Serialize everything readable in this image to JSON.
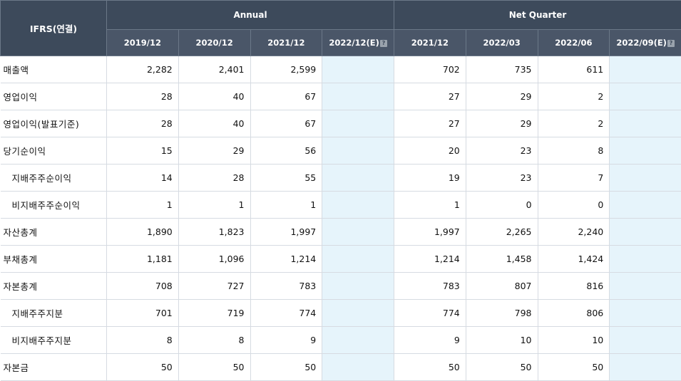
{
  "header": {
    "corner": "IFRS(연결)",
    "annual_group": "Annual",
    "quarter_group": "Net Quarter",
    "annual_cols": [
      "2019/12",
      "2020/12",
      "2021/12",
      "2022/12(E)"
    ],
    "quarter_cols": [
      "2021/12",
      "2022/03",
      "2022/06",
      "2022/09(E)"
    ],
    "help_glyph": "?"
  },
  "rows": [
    {
      "label": "매출액",
      "annual": [
        "2,282",
        "2,401",
        "2,599",
        ""
      ],
      "quarter": [
        "702",
        "735",
        "611",
        ""
      ]
    },
    {
      "label": "영업이익",
      "annual": [
        "28",
        "40",
        "67",
        ""
      ],
      "quarter": [
        "27",
        "29",
        "2",
        ""
      ]
    },
    {
      "label": "영업이익(발표기준)",
      "annual": [
        "28",
        "40",
        "67",
        ""
      ],
      "quarter": [
        "27",
        "29",
        "2",
        ""
      ]
    },
    {
      "label": "당기순이익",
      "annual": [
        "15",
        "29",
        "56",
        ""
      ],
      "quarter": [
        "20",
        "23",
        "8",
        ""
      ]
    },
    {
      "label": "지배주주순이익",
      "annual": [
        "14",
        "28",
        "55",
        ""
      ],
      "quarter": [
        "19",
        "23",
        "7",
        ""
      ]
    },
    {
      "label": "비지배주주순이익",
      "annual": [
        "1",
        "1",
        "1",
        ""
      ],
      "quarter": [
        "1",
        "0",
        "0",
        ""
      ]
    },
    {
      "label": "자산총계",
      "annual": [
        "1,890",
        "1,823",
        "1,997",
        ""
      ],
      "quarter": [
        "1,997",
        "2,265",
        "2,240",
        ""
      ]
    },
    {
      "label": "부채총계",
      "annual": [
        "1,181",
        "1,096",
        "1,214",
        ""
      ],
      "quarter": [
        "1,214",
        "1,458",
        "1,424",
        ""
      ]
    },
    {
      "label": "자본총계",
      "annual": [
        "708",
        "727",
        "783",
        ""
      ],
      "quarter": [
        "783",
        "807",
        "816",
        ""
      ]
    },
    {
      "label": "지배주주지분",
      "annual": [
        "701",
        "719",
        "774",
        ""
      ],
      "quarter": [
        "774",
        "798",
        "806",
        ""
      ]
    },
    {
      "label": "비지배주주지분",
      "annual": [
        "8",
        "8",
        "9",
        ""
      ],
      "quarter": [
        "9",
        "10",
        "10",
        ""
      ]
    },
    {
      "label": "자본금",
      "annual": [
        "50",
        "50",
        "50",
        ""
      ],
      "quarter": [
        "50",
        "50",
        "50",
        ""
      ]
    }
  ]
}
